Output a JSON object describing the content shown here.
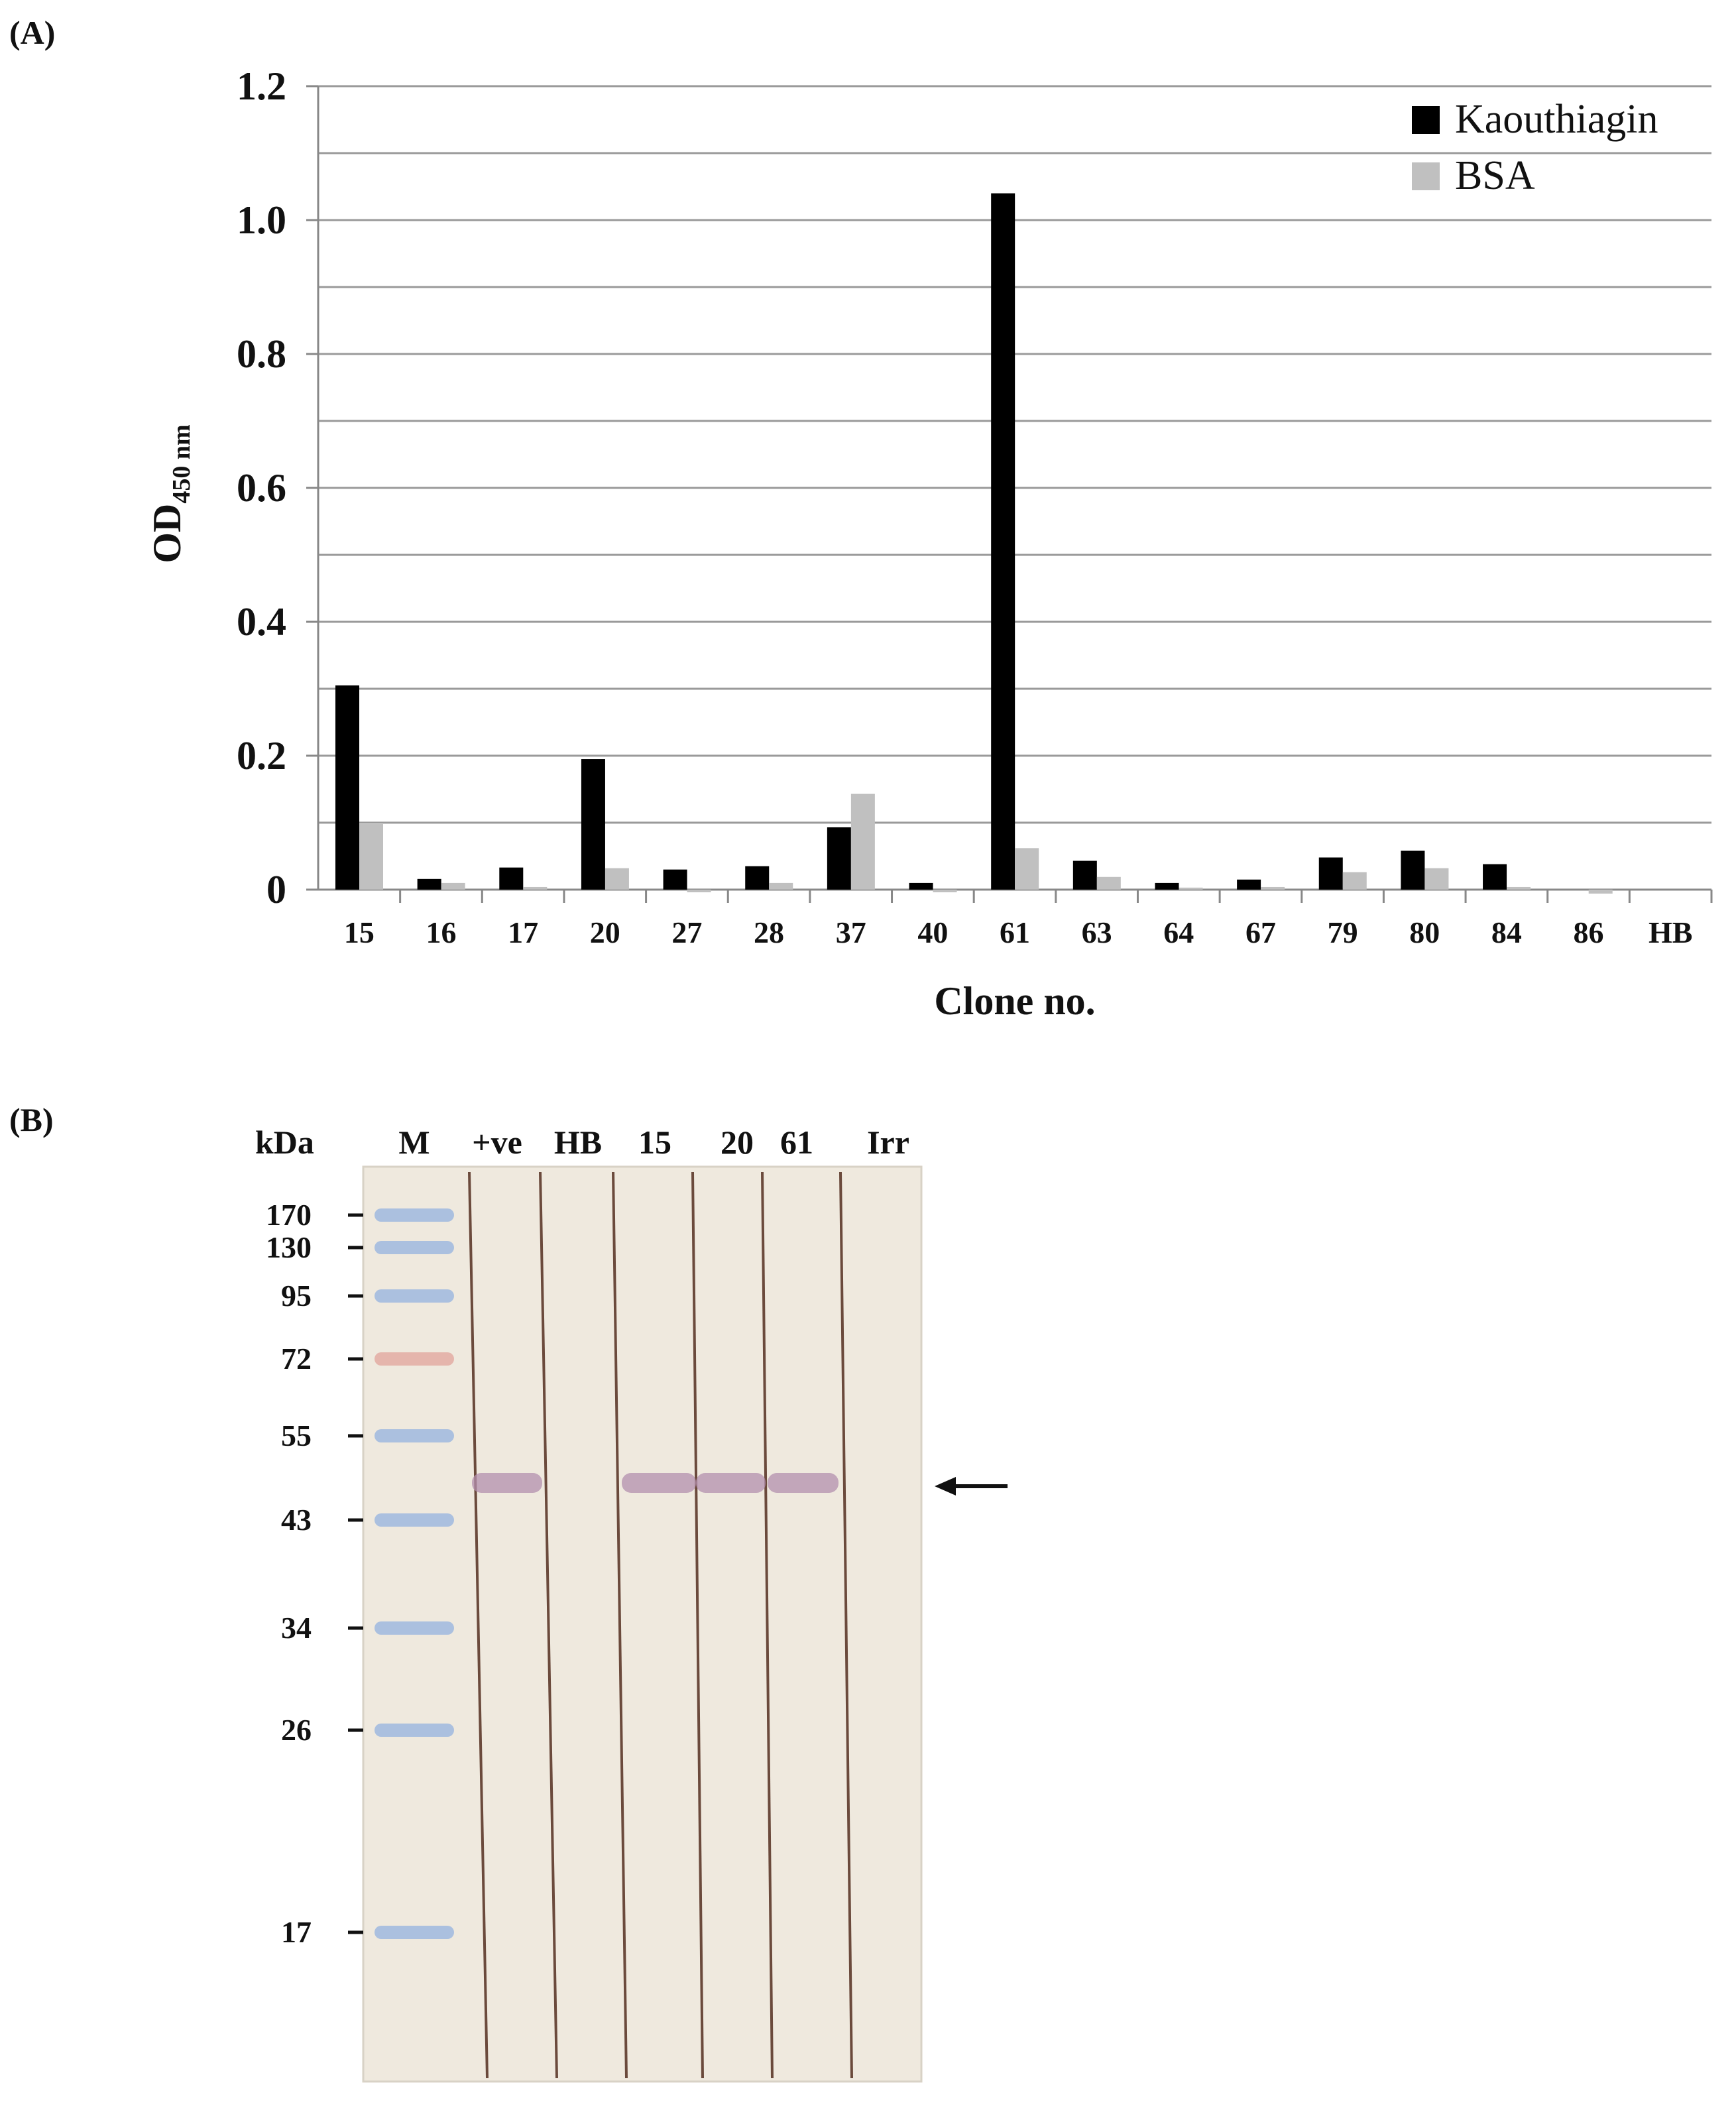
{
  "panel_a_label": "(A)",
  "panel_b_label": "(B)",
  "chart_data": {
    "type": "bar",
    "categories": [
      "15",
      "16",
      "17",
      "20",
      "27",
      "28",
      "37",
      "40",
      "61",
      "63",
      "64",
      "67",
      "79",
      "80",
      "84",
      "86",
      "HB"
    ],
    "series": [
      {
        "name": "Kaouthiagin",
        "color": "#000000",
        "values": [
          0.305,
          0.016,
          0.033,
          0.195,
          0.03,
          0.035,
          0.093,
          0.01,
          1.04,
          0.043,
          0.01,
          0.015,
          0.048,
          0.058,
          0.038,
          0.0,
          0.0
        ]
      },
      {
        "name": "BSA",
        "color": "#c0c0c0",
        "values": [
          0.098,
          0.01,
          0.004,
          0.032,
          -0.004,
          0.01,
          0.143,
          -0.004,
          0.062,
          0.019,
          0.003,
          0.004,
          0.026,
          0.032,
          0.004,
          -0.006,
          0.0
        ]
      }
    ],
    "ylim": [
      0,
      1.2
    ],
    "yticks": [
      "0",
      "0.2",
      "0.4",
      "0.6",
      "0.8",
      "1.0",
      "1.2"
    ],
    "ylabel_main": "OD",
    "ylabel_sub": "450 nm",
    "xlabel": "Clone no.",
    "grid": true,
    "legend_position": "top-right"
  },
  "blot": {
    "unit_label": "kDa",
    "lanes": [
      "M",
      "+ve",
      "HB",
      "15",
      "20",
      "61",
      "Irr"
    ],
    "markers": [
      "170",
      "130",
      "95",
      "72",
      "55",
      "43",
      "34",
      "26",
      "17"
    ],
    "band_lanes": [
      "+ve",
      "15",
      "20",
      "61"
    ],
    "arrow": "target-band-arrow",
    "colors": {
      "membrane": "#efe9de",
      "band": "#b38fae",
      "ladder": "#9fb8df",
      "ladder_red": "#e3aba3",
      "lane_line": "#6b4a3c"
    }
  }
}
